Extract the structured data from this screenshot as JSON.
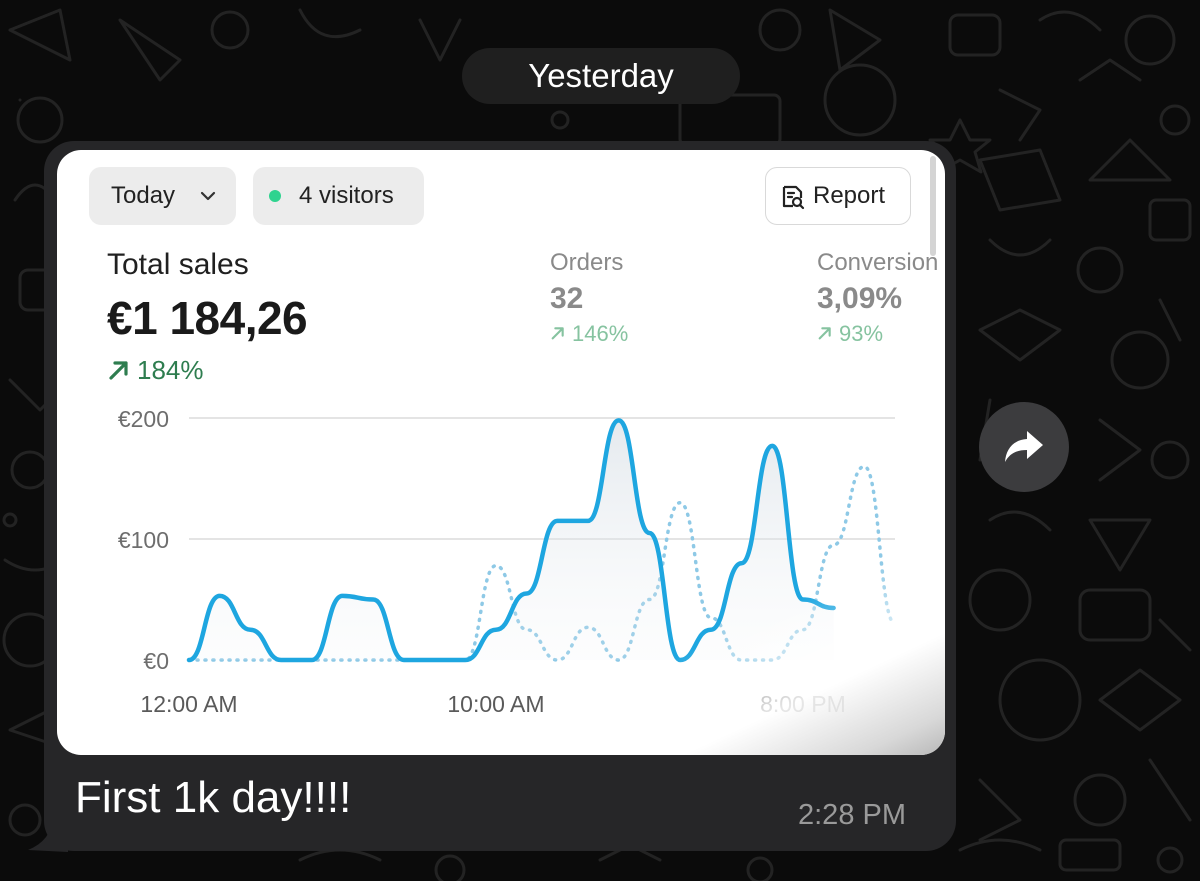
{
  "date_separator": "Yesterday",
  "card": {
    "period_label": "Today",
    "visitors_label": "4 visitors",
    "report_label": "Report",
    "total_sales": {
      "label": "Total sales",
      "value": "€1 184,26",
      "change": "184%"
    },
    "orders": {
      "label": "Orders",
      "value": "32",
      "change": "146%"
    },
    "conversion": {
      "label": "Conversion",
      "value": "3,09%",
      "change": "93%"
    }
  },
  "chart_data": {
    "type": "line",
    "x_ticks": [
      "12:00 AM",
      "10:00 AM",
      "8:00 PM"
    ],
    "y_ticks": [
      "€200",
      "€100",
      "€0"
    ],
    "ylim": [
      0,
      200
    ],
    "xlim": [
      0,
      23
    ],
    "grid": true,
    "series": [
      {
        "style": "solid",
        "color": "#1ea6e0",
        "x": [
          0,
          1,
          2,
          3,
          4,
          5,
          6,
          7,
          8,
          9,
          10,
          11,
          12,
          13,
          14,
          15,
          16,
          17,
          18,
          19,
          20,
          21
        ],
        "values": [
          0,
          53,
          25,
          0,
          0,
          53,
          50,
          0,
          0,
          0,
          25,
          55,
          115,
          115,
          198,
          105,
          0,
          25,
          80,
          177,
          50,
          43
        ]
      },
      {
        "style": "dotted",
        "color": "#8ec9e6",
        "x": [
          0,
          1,
          2,
          3,
          4,
          5,
          6,
          7,
          8,
          9,
          10,
          11,
          12,
          13,
          14,
          15,
          16,
          17,
          18,
          19,
          20,
          21,
          22,
          23
        ],
        "values": [
          0,
          0,
          0,
          0,
          0,
          0,
          0,
          0,
          0,
          0,
          78,
          25,
          0,
          27,
          0,
          50,
          130,
          35,
          0,
          0,
          25,
          95,
          160,
          30
        ]
      }
    ]
  },
  "message": {
    "caption": "First 1k day!!!!",
    "time": "2:28 PM"
  },
  "colors": {
    "accent": "#1ea6e0",
    "positive": "#2e7d4f",
    "live": "#2fd38f",
    "bubble": "#262628"
  },
  "icons": [
    "chevron-down-icon",
    "report-icon",
    "forward-icon",
    "trend-up-icon"
  ]
}
